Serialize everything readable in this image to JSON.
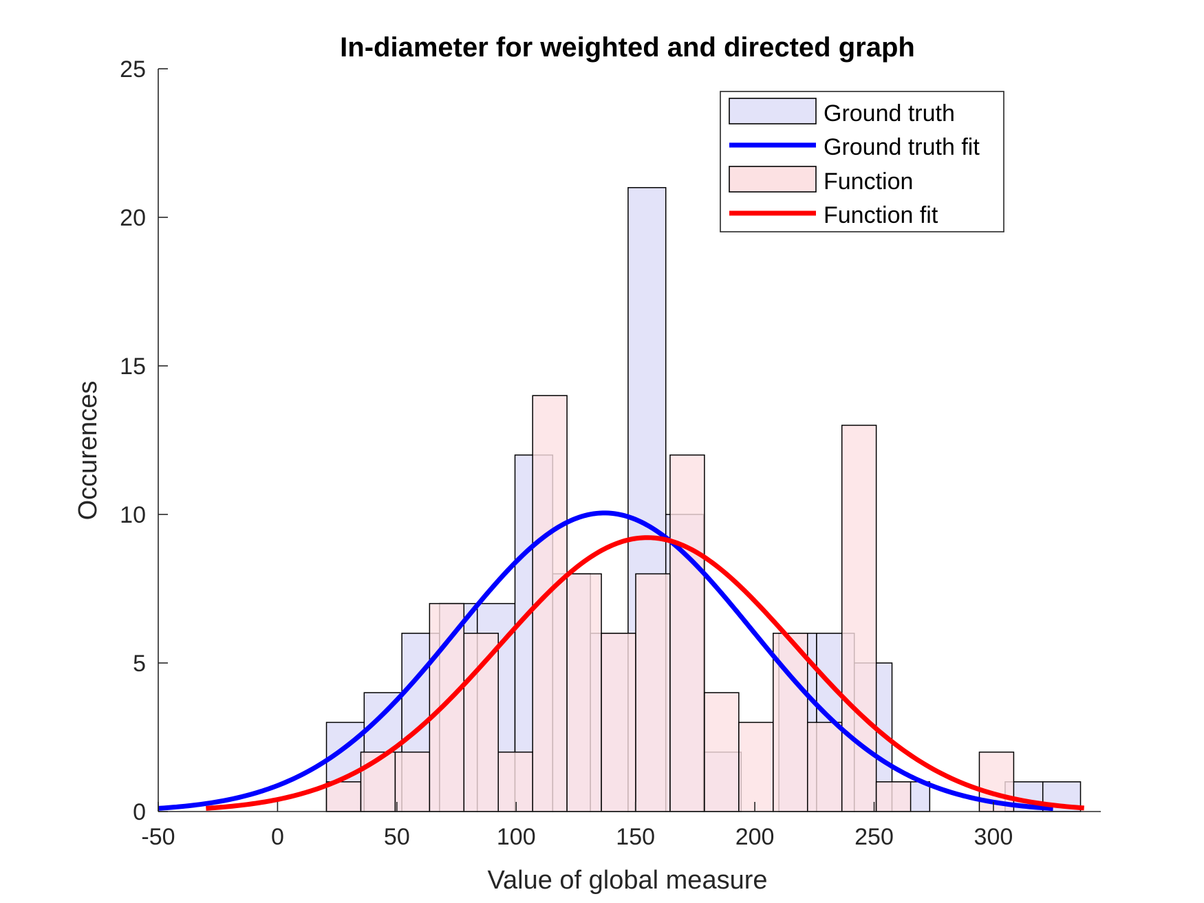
{
  "chart_data": {
    "type": "bar",
    "title": "In-diameter for weighted and directed graph",
    "xlabel": "Value of global measure",
    "ylabel": "Occurences",
    "xlim": [
      -50,
      345
    ],
    "ylim": [
      0,
      25
    ],
    "xticks": [
      -50,
      0,
      50,
      100,
      150,
      200,
      250,
      300
    ],
    "yticks": [
      0,
      5,
      10,
      15,
      20,
      25
    ],
    "grid": false,
    "legend_position": "top-right",
    "legend": [
      {
        "label": "Ground truth",
        "kind": "patch",
        "color": "#e3e3f9"
      },
      {
        "label": "Ground truth fit",
        "kind": "line",
        "color": "#0000ff"
      },
      {
        "label": "Function",
        "kind": "patch",
        "color": "#fce1e3"
      },
      {
        "label": "Function fit",
        "kind": "line",
        "color": "#ff0000"
      }
    ],
    "histograms": [
      {
        "name": "Ground truth",
        "color": "#e3e3f9",
        "bins": [
          {
            "x0": 20.5,
            "x1": 36.3,
            "count": 3
          },
          {
            "x0": 36.3,
            "x1": 52.1,
            "count": 4
          },
          {
            "x0": 52.1,
            "x1": 67.9,
            "count": 6
          },
          {
            "x0": 67.9,
            "x1": 83.7,
            "count": 7
          },
          {
            "x0": 83.7,
            "x1": 99.5,
            "count": 7
          },
          {
            "x0": 99.5,
            "x1": 115.3,
            "count": 12
          },
          {
            "x0": 115.3,
            "x1": 131.1,
            "count": 8
          },
          {
            "x0": 131.1,
            "x1": 146.9,
            "count": 6
          },
          {
            "x0": 146.9,
            "x1": 162.7,
            "count": 21
          },
          {
            "x0": 162.7,
            "x1": 178.5,
            "count": 10
          },
          {
            "x0": 178.5,
            "x1": 194.3,
            "count": 2
          },
          {
            "x0": 194.3,
            "x1": 210.1,
            "count": 0
          },
          {
            "x0": 210.1,
            "x1": 225.9,
            "count": 6
          },
          {
            "x0": 225.9,
            "x1": 241.7,
            "count": 6
          },
          {
            "x0": 241.7,
            "x1": 257.5,
            "count": 5
          },
          {
            "x0": 257.5,
            "x1": 273.3,
            "count": 1
          },
          {
            "x0": 273.3,
            "x1": 289.1,
            "count": 0
          },
          {
            "x0": 289.1,
            "x1": 304.9,
            "count": 0
          },
          {
            "x0": 304.9,
            "x1": 320.7,
            "count": 1
          },
          {
            "x0": 320.7,
            "x1": 336.5,
            "count": 1
          }
        ]
      },
      {
        "name": "Function",
        "color": "#fce1e3",
        "bins": [
          {
            "x0": 20.5,
            "x1": 34.9,
            "count": 1
          },
          {
            "x0": 34.9,
            "x1": 49.3,
            "count": 2
          },
          {
            "x0": 49.3,
            "x1": 63.7,
            "count": 2
          },
          {
            "x0": 63.7,
            "x1": 78.1,
            "count": 7
          },
          {
            "x0": 78.1,
            "x1": 92.5,
            "count": 6
          },
          {
            "x0": 92.5,
            "x1": 106.9,
            "count": 2
          },
          {
            "x0": 106.9,
            "x1": 121.3,
            "count": 14
          },
          {
            "x0": 121.3,
            "x1": 135.7,
            "count": 8
          },
          {
            "x0": 135.7,
            "x1": 150.1,
            "count": 6
          },
          {
            "x0": 150.1,
            "x1": 164.5,
            "count": 8
          },
          {
            "x0": 164.5,
            "x1": 178.9,
            "count": 12
          },
          {
            "x0": 178.9,
            "x1": 193.3,
            "count": 4
          },
          {
            "x0": 193.3,
            "x1": 207.7,
            "count": 3
          },
          {
            "x0": 207.7,
            "x1": 222.1,
            "count": 6
          },
          {
            "x0": 222.1,
            "x1": 236.5,
            "count": 3
          },
          {
            "x0": 236.5,
            "x1": 250.9,
            "count": 13
          },
          {
            "x0": 250.9,
            "x1": 265.3,
            "count": 1
          },
          {
            "x0": 265.3,
            "x1": 279.7,
            "count": 0
          },
          {
            "x0": 279.7,
            "x1": 294.1,
            "count": 0
          },
          {
            "x0": 294.1,
            "x1": 308.5,
            "count": 2
          }
        ]
      }
    ],
    "fits": [
      {
        "name": "Ground truth fit",
        "color": "#0000ff",
        "peak_x": 137,
        "peak_y": 10.05,
        "sigma": 62,
        "x_range": [
          -50,
          325
        ]
      },
      {
        "name": "Function fit",
        "color": "#ff0000",
        "peak_x": 155,
        "peak_y": 9.22,
        "sigma": 62,
        "x_range": [
          -30,
          338
        ]
      }
    ]
  }
}
